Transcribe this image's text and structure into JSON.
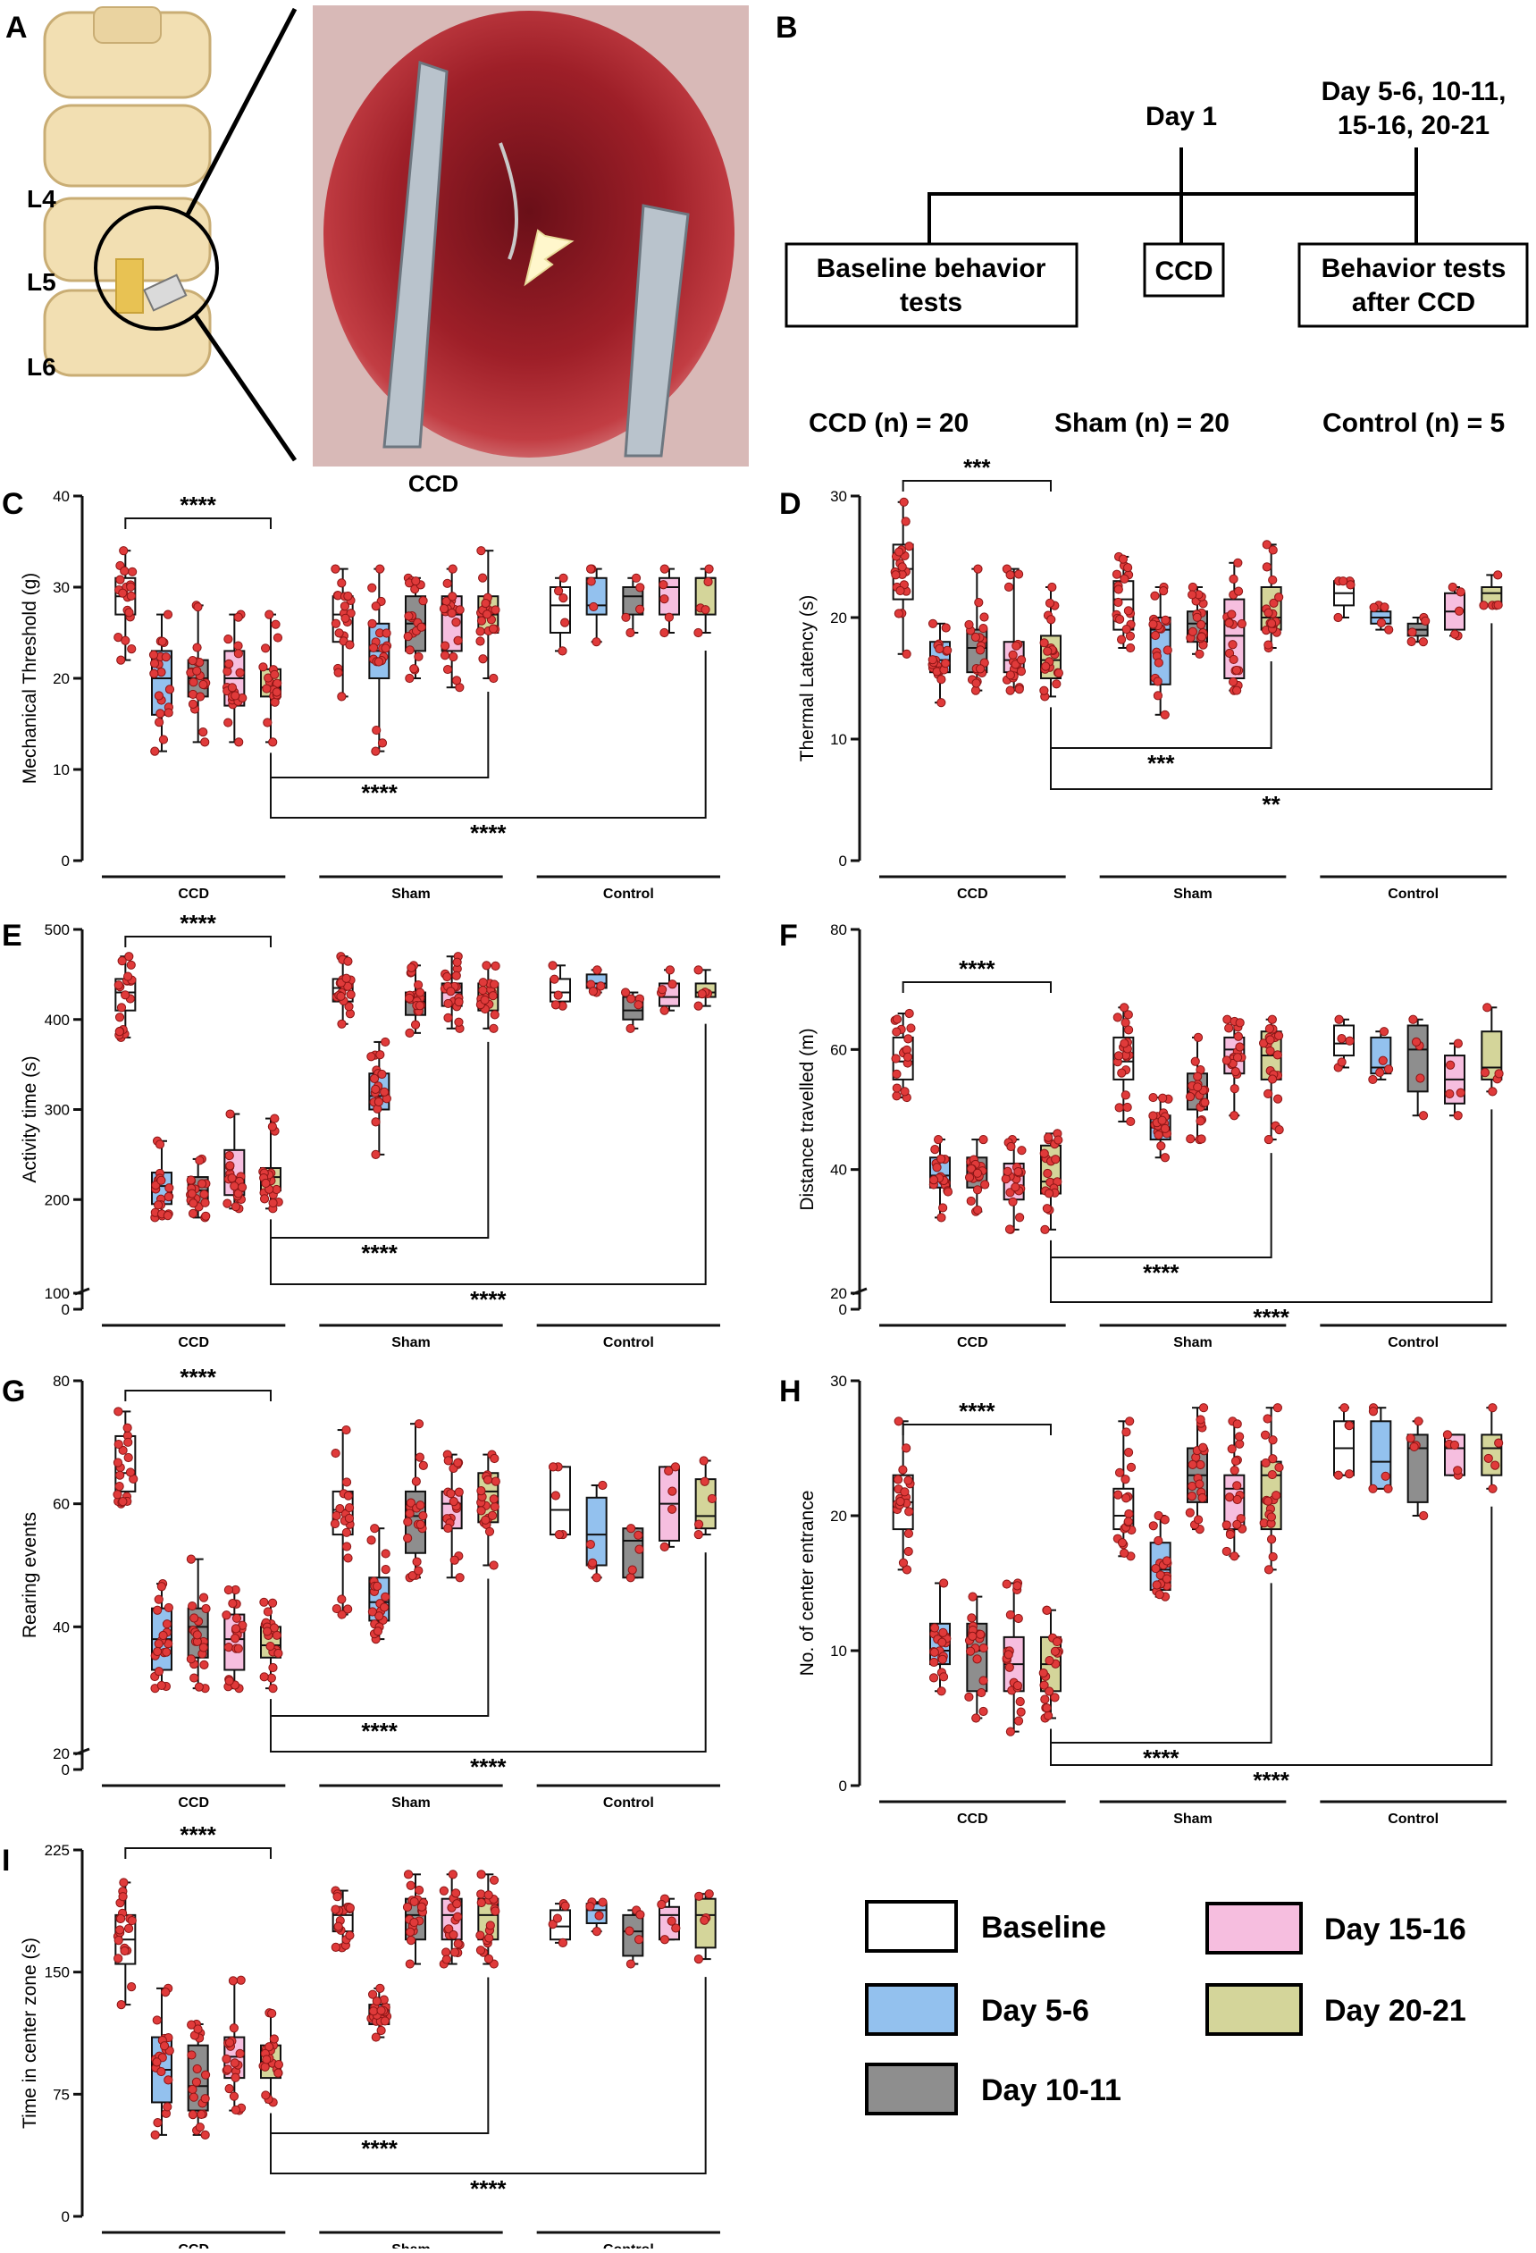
{
  "panel_labels": {
    "a": "A",
    "b": "B",
    "c": "C",
    "d": "D",
    "e": "E",
    "f": "F",
    "g": "G",
    "h": "H",
    "i": "I"
  },
  "vertebra_labels": [
    "L4",
    "L5",
    "L6"
  ],
  "timeline": {
    "day1": "Day 1",
    "later_days": [
      "Day 5-6, 10-11,",
      "15-16, 20-21"
    ],
    "boxes": [
      [
        "Baseline behavior",
        "tests"
      ],
      [
        "CCD"
      ],
      [
        "Behavior tests",
        "after CCD"
      ]
    ]
  },
  "n_counts": {
    "ccd": "CCD (n) = 20",
    "sham": "Sham (n) = 20",
    "control": "Control (n) = 5"
  },
  "legend": [
    {
      "label": "Baseline",
      "color": "#ffffff"
    },
    {
      "label": "Day 5-6",
      "color": "#93c1ee"
    },
    {
      "label": "Day 10-11",
      "color": "#8e8e8e"
    },
    {
      "label": "Day 15-16",
      "color": "#f6bedf"
    },
    {
      "label": "Day 20-21",
      "color": "#d4d59a"
    }
  ],
  "colors": {
    "dot": "#e03a3a",
    "dot_stroke": "#8b1515",
    "line": "#111111"
  },
  "chart_data": [
    {
      "panel": "C",
      "type": "box",
      "title": "CCD",
      "ylabel": "Mechanical Threshold (g)",
      "ylim": [
        0,
        40
      ],
      "yticks": [
        0,
        10,
        20,
        30,
        40
      ],
      "groups": [
        "CCD",
        "Sham",
        "Control"
      ],
      "series": [
        "Baseline",
        "Day 5-6",
        "Day 10-11",
        "Day 15-16",
        "Day 20-21"
      ],
      "boxes": [
        [
          [
            22,
            27,
            29,
            31,
            34
          ],
          [
            12,
            16,
            20,
            23,
            27
          ],
          [
            13,
            18,
            20,
            22,
            28
          ],
          [
            13,
            17,
            20,
            23,
            27
          ],
          [
            13,
            18,
            19,
            21,
            27
          ]
        ],
        [
          [
            18,
            24,
            27,
            29,
            32
          ],
          [
            12,
            20,
            23,
            26,
            32
          ],
          [
            20,
            23,
            26,
            29,
            31
          ],
          [
            19,
            23,
            27,
            29,
            32
          ],
          [
            20,
            25,
            27,
            29,
            34
          ]
        ],
        [
          [
            23,
            25,
            28,
            30,
            31
          ],
          [
            24,
            27,
            28,
            31,
            32
          ],
          [
            25,
            27,
            29,
            30,
            31
          ],
          [
            25,
            27,
            30,
            31,
            32
          ],
          [
            25,
            27,
            31,
            31,
            32
          ]
        ]
      ],
      "counts": [
        20,
        20,
        5
      ],
      "significance": [
        {
          "from": "CCD-Baseline",
          "to": "CCD-Day 20-21",
          "label": "****"
        },
        {
          "from": "CCD-Day 20-21",
          "to": "Sham-Day 20-21",
          "label": "****"
        },
        {
          "from": "CCD-Day 20-21",
          "to": "Control-Day 20-21",
          "label": "****"
        }
      ]
    },
    {
      "panel": "D",
      "type": "box",
      "title": "",
      "ylabel": "Thermal Latency (s)",
      "ylim": [
        0,
        30
      ],
      "yticks": [
        0,
        10,
        20,
        30
      ],
      "groups": [
        "CCD",
        "Sham",
        "Control"
      ],
      "series": [
        "Baseline",
        "Day 5-6",
        "Day 10-11",
        "Day 15-16",
        "Day 20-21"
      ],
      "boxes": [
        [
          [
            17,
            21.5,
            24,
            26,
            29.5
          ],
          [
            13,
            15.5,
            16.5,
            18,
            19.5
          ],
          [
            14,
            15.5,
            17.5,
            19,
            24
          ],
          [
            14,
            15.5,
            16.5,
            18,
            24
          ],
          [
            13.5,
            15,
            16.5,
            18.5,
            22.5
          ]
        ],
        [
          [
            17.5,
            19,
            21.5,
            23,
            25
          ],
          [
            12,
            14.5,
            19,
            20,
            22.5
          ],
          [
            17,
            18,
            19.5,
            20.5,
            22.5
          ],
          [
            14,
            15,
            18.5,
            21.5,
            24.5
          ],
          [
            17.5,
            19,
            20,
            22.5,
            26
          ]
        ],
        [
          [
            20,
            21,
            22,
            23,
            23
          ],
          [
            19,
            19.5,
            20,
            20.5,
            21
          ],
          [
            18,
            18.5,
            19,
            19.5,
            20
          ],
          [
            18.5,
            19,
            20.5,
            22,
            22.5
          ],
          [
            21,
            21,
            22,
            22.5,
            23.5
          ]
        ]
      ],
      "counts": [
        20,
        20,
        5
      ],
      "significance": [
        {
          "from": "CCD-Baseline",
          "to": "CCD-Day 20-21",
          "label": "***"
        },
        {
          "from": "CCD-Day 20-21",
          "to": "Sham-Day 20-21",
          "label": "***"
        },
        {
          "from": "CCD-Day 20-21",
          "to": "Control-Day 20-21",
          "label": "**"
        }
      ]
    },
    {
      "panel": "E",
      "type": "box",
      "title": "",
      "ylabel": "Activity time (s)",
      "ylim": [
        0,
        500
      ],
      "yticks": [
        0,
        100,
        200,
        300,
        400,
        500
      ],
      "axis_break": [
        100,
        170
      ],
      "groups": [
        "CCD",
        "Sham",
        "Control"
      ],
      "series": [
        "Baseline",
        "Day 5-6",
        "Day 10-11",
        "Day 15-16",
        "Day 20-21"
      ],
      "boxes": [
        [
          [
            380,
            410,
            430,
            445,
            470
          ],
          [
            180,
            195,
            215,
            230,
            265
          ],
          [
            180,
            195,
            210,
            225,
            245
          ],
          [
            190,
            205,
            225,
            255,
            295
          ],
          [
            190,
            210,
            225,
            235,
            290
          ]
        ],
        [
          [
            395,
            420,
            435,
            445,
            470
          ],
          [
            250,
            300,
            315,
            340,
            375
          ],
          [
            385,
            405,
            420,
            430,
            460
          ],
          [
            390,
            415,
            430,
            440,
            470
          ],
          [
            390,
            410,
            425,
            440,
            460
          ]
        ],
        [
          [
            415,
            420,
            430,
            445,
            460
          ],
          [
            430,
            435,
            440,
            450,
            455
          ],
          [
            390,
            400,
            410,
            425,
            430
          ],
          [
            410,
            415,
            425,
            440,
            455
          ],
          [
            415,
            425,
            430,
            440,
            455
          ]
        ]
      ],
      "counts": [
        20,
        20,
        5
      ],
      "significance": [
        {
          "from": "CCD-Baseline",
          "to": "CCD-Day 20-21",
          "label": "****"
        },
        {
          "from": "CCD-Day 20-21",
          "to": "Sham-Day 20-21",
          "label": "****"
        },
        {
          "from": "CCD-Day 20-21",
          "to": "Control-Day 20-21",
          "label": "****"
        }
      ]
    },
    {
      "panel": "F",
      "type": "box",
      "title": "",
      "ylabel": "Distance travelled (m)",
      "ylim": [
        0,
        80
      ],
      "yticks": [
        0,
        20,
        40,
        60,
        80
      ],
      "axis_break": [
        20,
        28
      ],
      "groups": [
        "CCD",
        "Sham",
        "Control"
      ],
      "series": [
        "Baseline",
        "Day 5-6",
        "Day 10-11",
        "Day 15-16",
        "Day 20-21"
      ],
      "boxes": [
        [
          [
            52,
            55,
            58,
            62,
            66
          ],
          [
            32,
            37,
            39,
            42,
            45
          ],
          [
            33,
            37,
            40,
            42,
            45
          ],
          [
            30,
            35,
            39,
            41,
            45
          ],
          [
            30,
            36,
            38,
            44,
            46
          ]
        ],
        [
          [
            48,
            55,
            58,
            62,
            67
          ],
          [
            42,
            45,
            47,
            49,
            52
          ],
          [
            45,
            50,
            53,
            56,
            62
          ],
          [
            49,
            56,
            60,
            62,
            65
          ],
          [
            45,
            55,
            59,
            63,
            65
          ]
        ],
        [
          [
            57,
            59,
            61,
            64,
            65
          ],
          [
            55,
            56,
            57,
            62,
            63
          ],
          [
            49,
            53,
            60,
            64,
            65
          ],
          [
            49,
            51,
            55,
            59,
            61
          ],
          [
            53,
            55,
            57,
            63,
            67
          ]
        ]
      ],
      "counts": [
        20,
        20,
        5
      ],
      "significance": [
        {
          "from": "CCD-Baseline",
          "to": "CCD-Day 20-21",
          "label": "****"
        },
        {
          "from": "CCD-Day 20-21",
          "to": "Sham-Day 20-21",
          "label": "****"
        },
        {
          "from": "CCD-Day 20-21",
          "to": "Control-Day 20-21",
          "label": "****"
        }
      ]
    },
    {
      "panel": "G",
      "type": "box",
      "title": "",
      "ylabel": "Rearing events",
      "ylim": [
        0,
        80
      ],
      "yticks": [
        0,
        20,
        40,
        60,
        80
      ],
      "axis_break": [
        20,
        28
      ],
      "groups": [
        "CCD",
        "Sham",
        "Control"
      ],
      "series": [
        "Baseline",
        "Day 5-6",
        "Day 10-11",
        "Day 15-16",
        "Day 20-21"
      ],
      "boxes": [
        [
          [
            60,
            62,
            65,
            71,
            75
          ],
          [
            30,
            33,
            38,
            43,
            47
          ],
          [
            30,
            35,
            40,
            43,
            51
          ],
          [
            30,
            33,
            38,
            42,
            46
          ],
          [
            30,
            35,
            37,
            40,
            44
          ]
        ],
        [
          [
            42,
            55,
            59,
            62,
            72
          ],
          [
            38,
            41,
            44,
            48,
            56
          ],
          [
            48,
            52,
            58,
            62,
            73
          ],
          [
            48,
            56,
            60,
            62,
            68
          ],
          [
            50,
            57,
            62,
            65,
            68
          ]
        ],
        [
          [
            55,
            55,
            59,
            66,
            66
          ],
          [
            48,
            50,
            55,
            61,
            63
          ],
          [
            48,
            48,
            54,
            56,
            56
          ],
          [
            53,
            54,
            60,
            66,
            66
          ],
          [
            55,
            56,
            58,
            64,
            67
          ]
        ]
      ],
      "counts": [
        20,
        20,
        5
      ],
      "significance": [
        {
          "from": "CCD-Baseline",
          "to": "CCD-Day 20-21",
          "label": "****"
        },
        {
          "from": "CCD-Day 20-21",
          "to": "Sham-Day 20-21",
          "label": "****"
        },
        {
          "from": "CCD-Day 20-21",
          "to": "Control-Day 20-21",
          "label": "****"
        }
      ]
    },
    {
      "panel": "H",
      "type": "box",
      "title": "",
      "ylabel": "No. of center entrance",
      "ylim": [
        0,
        30
      ],
      "yticks": [
        0,
        10,
        20,
        30
      ],
      "groups": [
        "CCD",
        "Sham",
        "Control"
      ],
      "series": [
        "Baseline",
        "Day 5-6",
        "Day 10-11",
        "Day 15-16",
        "Day 20-21"
      ],
      "boxes": [
        [
          [
            16,
            19,
            21,
            23,
            27
          ],
          [
            7,
            9,
            10,
            12,
            15
          ],
          [
            5,
            7,
            10,
            12,
            14
          ],
          [
            4,
            7,
            9,
            11,
            15
          ],
          [
            5,
            7,
            9,
            11,
            13
          ]
        ],
        [
          [
            17,
            19,
            20,
            22,
            27
          ],
          [
            14,
            14.5,
            16,
            18,
            20
          ],
          [
            19,
            21,
            23,
            25,
            28
          ],
          [
            17,
            19,
            22,
            23,
            27
          ],
          [
            16,
            19,
            23,
            24,
            28
          ]
        ],
        [
          [
            23,
            23,
            25,
            27,
            28
          ],
          [
            22,
            22,
            24,
            27,
            28
          ],
          [
            20,
            21,
            25,
            26,
            27
          ],
          [
            23,
            23,
            25,
            26,
            26
          ],
          [
            22,
            23,
            25,
            26,
            28
          ]
        ]
      ],
      "counts": [
        20,
        20,
        5
      ],
      "significance": [
        {
          "from": "CCD-Baseline",
          "to": "CCD-Day 20-21",
          "label": "****"
        },
        {
          "from": "CCD-Day 20-21",
          "to": "Sham-Day 20-21",
          "label": "****"
        },
        {
          "from": "CCD-Day 20-21",
          "to": "Control-Day 20-21",
          "label": "****"
        }
      ]
    },
    {
      "panel": "I",
      "type": "box",
      "title": "",
      "ylabel": "Time in center zone (s)",
      "ylim": [
        0,
        225
      ],
      "yticks": [
        0,
        75,
        150,
        225
      ],
      "groups": [
        "CCD",
        "Sham",
        "Control"
      ],
      "series": [
        "Baseline",
        "Day 5-6",
        "Day 10-11",
        "Day 15-16",
        "Day 20-21"
      ],
      "boxes": [
        [
          [
            130,
            155,
            170,
            185,
            205
          ],
          [
            50,
            70,
            90,
            110,
            140
          ],
          [
            50,
            65,
            80,
            105,
            118
          ],
          [
            65,
            85,
            98,
            110,
            145
          ],
          [
            70,
            85,
            95,
            105,
            125
          ]
        ],
        [
          [
            165,
            175,
            185,
            190,
            200
          ],
          [
            110,
            118,
            125,
            130,
            140
          ],
          [
            155,
            170,
            185,
            195,
            210
          ],
          [
            155,
            170,
            185,
            195,
            210
          ],
          [
            155,
            170,
            185,
            195,
            210
          ]
        ],
        [
          [
            168,
            170,
            178,
            188,
            192
          ],
          [
            175,
            180,
            188,
            192,
            193
          ],
          [
            155,
            160,
            175,
            185,
            188
          ],
          [
            170,
            170,
            185,
            190,
            195
          ],
          [
            158,
            165,
            185,
            195,
            198
          ]
        ]
      ],
      "counts": [
        20,
        20,
        5
      ],
      "significance": [
        {
          "from": "CCD-Baseline",
          "to": "CCD-Day 20-21",
          "label": "****"
        },
        {
          "from": "CCD-Day 20-21",
          "to": "Sham-Day 20-21",
          "label": "****"
        },
        {
          "from": "CCD-Day 20-21",
          "to": "Control-Day 20-21",
          "label": "****"
        }
      ]
    }
  ]
}
